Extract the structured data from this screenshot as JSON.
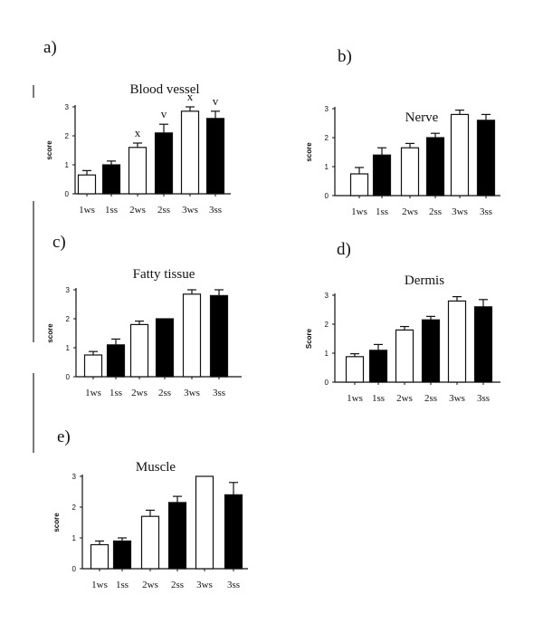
{
  "chart_data": [
    {
      "type": "bar",
      "panel": "a)",
      "title": "Blood vessel",
      "ylabel": "score",
      "ylim": [
        0,
        3
      ],
      "yticks": [
        "0",
        "1",
        "2",
        "3"
      ],
      "categories": [
        "1ws",
        "1ss",
        "2ws",
        "2ss",
        "3ws",
        "3ss"
      ],
      "values": [
        0.65,
        1.0,
        1.6,
        2.1,
        2.85,
        2.6
      ],
      "errors": [
        0.15,
        0.13,
        0.15,
        0.3,
        0.15,
        0.25
      ],
      "fill": [
        "white",
        "black",
        "white",
        "black",
        "white",
        "black"
      ],
      "annotations": [
        "",
        "",
        "x",
        "v",
        "x",
        "v"
      ]
    },
    {
      "type": "bar",
      "panel": "b)",
      "title": "Nerve",
      "ylabel": "score",
      "ylim": [
        0,
        3
      ],
      "yticks": [
        "0",
        "1",
        "2",
        "3"
      ],
      "categories": [
        "1ws",
        "1ss",
        "2ws",
        "2ss",
        "3ws",
        "3ss"
      ],
      "values": [
        0.75,
        1.4,
        1.65,
        2.0,
        2.8,
        2.6
      ],
      "errors": [
        0.22,
        0.25,
        0.15,
        0.15,
        0.15,
        0.2
      ],
      "fill": [
        "white",
        "black",
        "white",
        "black",
        "white",
        "black"
      ]
    },
    {
      "type": "bar",
      "panel": "c)",
      "title": "Fatty tissue",
      "ylabel": "score",
      "ylim": [
        0,
        3
      ],
      "yticks": [
        "0",
        "1",
        "2",
        "3"
      ],
      "categories": [
        "1ws",
        "1ss",
        "2ws",
        "2ss",
        "3ws",
        "3ss"
      ],
      "values": [
        0.75,
        1.1,
        1.8,
        2.0,
        2.85,
        2.8
      ],
      "errors": [
        0.12,
        0.2,
        0.12,
        0.0,
        0.15,
        0.2
      ],
      "fill": [
        "white",
        "black",
        "white",
        "black",
        "white",
        "black"
      ]
    },
    {
      "type": "bar",
      "panel": "d)",
      "title": "Dermis",
      "ylabel": "Score",
      "ylim": [
        0,
        3
      ],
      "yticks": [
        "0",
        "1",
        "2",
        "3"
      ],
      "categories": [
        "1ws",
        "1ss",
        "2ws",
        "2ss",
        "3ws",
        "3ss"
      ],
      "values": [
        0.88,
        1.1,
        1.8,
        2.15,
        2.8,
        2.6
      ],
      "errors": [
        0.1,
        0.2,
        0.12,
        0.12,
        0.15,
        0.25
      ],
      "fill": [
        "white",
        "black",
        "white",
        "black",
        "white",
        "black"
      ]
    },
    {
      "type": "bar",
      "panel": "e)",
      "title": "Muscle",
      "ylabel": "score",
      "ylim": [
        0,
        3
      ],
      "yticks": [
        "0",
        "1",
        "2",
        "3"
      ],
      "categories": [
        "1ws",
        "1ss",
        "2ws",
        "2ss",
        "3ws",
        "3ss"
      ],
      "values": [
        0.78,
        0.9,
        1.7,
        2.15,
        3.0,
        2.4
      ],
      "errors": [
        0.12,
        0.1,
        0.2,
        0.2,
        0.0,
        0.4
      ],
      "fill": [
        "white",
        "black",
        "white",
        "black",
        "white",
        "black"
      ]
    }
  ],
  "colors": {
    "white_bar": "#ffffff",
    "black_bar": "#000000",
    "axis": "#111111"
  }
}
